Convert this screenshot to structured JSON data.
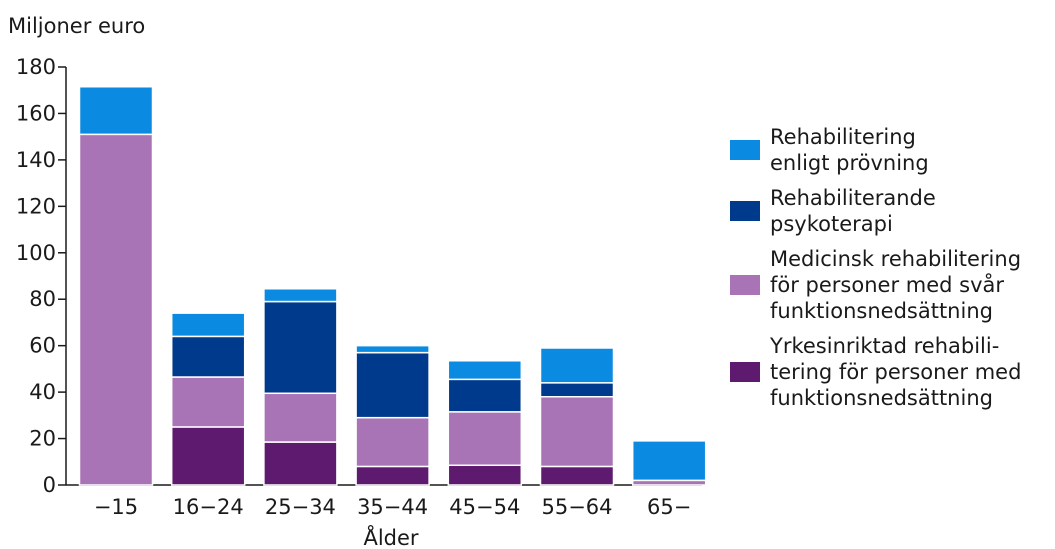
{
  "chart_data": {
    "type": "bar",
    "stacked": true,
    "ylabel": "Miljoner euro",
    "xlabel": "Ålder",
    "categories": [
      "−15",
      "16−24",
      "25−34",
      "35−44",
      "45−54",
      "55−64",
      "65−"
    ],
    "ylim": [
      0,
      180
    ],
    "yticks": [
      0,
      20,
      40,
      60,
      80,
      100,
      120,
      140,
      160,
      180
    ],
    "grid": false,
    "legend_position": "right",
    "series": [
      {
        "name": "Yrkesinriktad rehabili-\ntering för personer med\nfunktionsnedsättning",
        "color": "#5e1a6e",
        "values": [
          0,
          25,
          18.5,
          8,
          8.5,
          8,
          0
        ]
      },
      {
        "name": "Medicinsk rehabilitering\nför personer med svår\nfunktionsnedsättning",
        "color": "#a874b6",
        "values": [
          151,
          21.5,
          21,
          21,
          23,
          30,
          2
        ]
      },
      {
        "name": "Rehabiliterande\npsykoterapi",
        "color": "#003a8c",
        "values": [
          0,
          17.5,
          39.5,
          28,
          14,
          6,
          0
        ]
      },
      {
        "name": "Rehabilitering\nenligt prövning",
        "color": "#0a8ae0",
        "values": [
          20.5,
          10,
          5.5,
          3,
          8,
          15,
          17
        ]
      }
    ],
    "legend_order": [
      3,
      2,
      1,
      0
    ]
  }
}
